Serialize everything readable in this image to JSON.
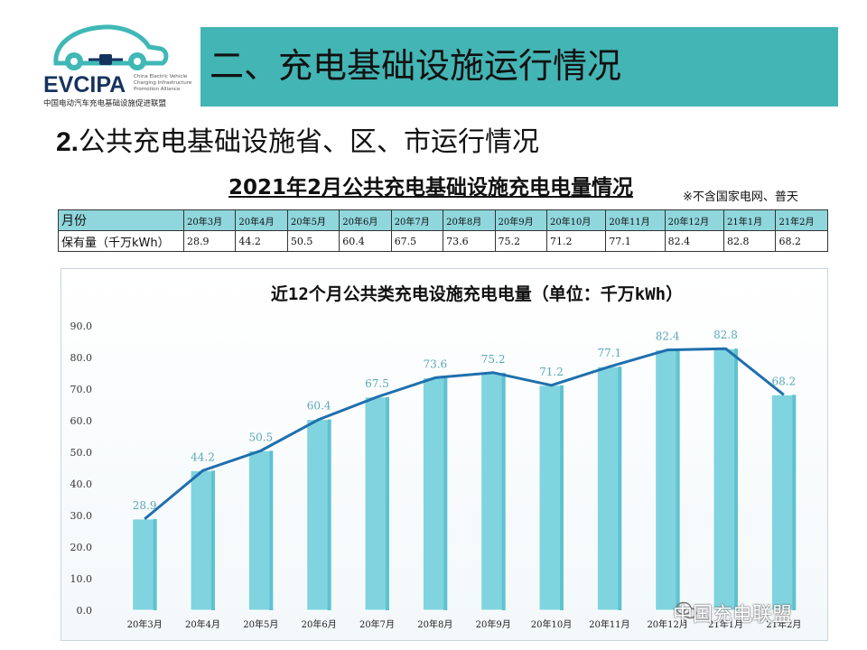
{
  "logo": {
    "name": "EVCIPA",
    "sub": "China Electric Vehicle Charging Infrastructure Promotion Alliance",
    "cn": "中国电动汽车充电基础设施促进联盟"
  },
  "header": {
    "title": "二、充电基础设施运行情况"
  },
  "section": {
    "num": "2.",
    "text": "公共充电基础设施省、区、市运行情况"
  },
  "table": {
    "title": "2021年2月公共充电基础设施充电电量情况",
    "note": "※不含国家电网、普天",
    "row_headers": [
      "月份",
      "保有量（千万kWh）"
    ],
    "months": [
      "20年3月",
      "20年4月",
      "20年5月",
      "20年6月",
      "20年7月",
      "20年8月",
      "20年9月",
      "20年10月",
      "20年11月",
      "20年12月",
      "21年1月",
      "21年2月"
    ],
    "values": [
      "28.9",
      "44.2",
      "50.5",
      "60.4",
      "67.5",
      "73.6",
      "75.2",
      "71.2",
      "77.1",
      "82.4",
      "82.8",
      "68.2"
    ]
  },
  "chart_data": {
    "type": "bar",
    "title": "近12个月公共类充电设施充电电量（单位：千万kWh）",
    "categories": [
      "20年3月",
      "20年4月",
      "20年5月",
      "20年6月",
      "20年7月",
      "20年8月",
      "20年9月",
      "20年10月",
      "20年11月",
      "20年12月",
      "21年1月",
      "21年2月"
    ],
    "values": [
      28.9,
      44.2,
      50.5,
      60.4,
      67.5,
      73.6,
      75.2,
      71.2,
      77.1,
      82.4,
      82.8,
      68.2
    ],
    "overlay_line": true,
    "ylim": [
      0,
      90
    ],
    "yticks": [
      "0.0",
      "10.0",
      "20.0",
      "30.0",
      "40.0",
      "50.0",
      "60.0",
      "70.0",
      "80.0",
      "90.0"
    ],
    "xlabel": "",
    "ylabel": "",
    "bar_color": "#7fd4df",
    "line_color": "#1f6fad",
    "label_color": "#5aa8b8"
  },
  "watermark": "中国充电联盟"
}
